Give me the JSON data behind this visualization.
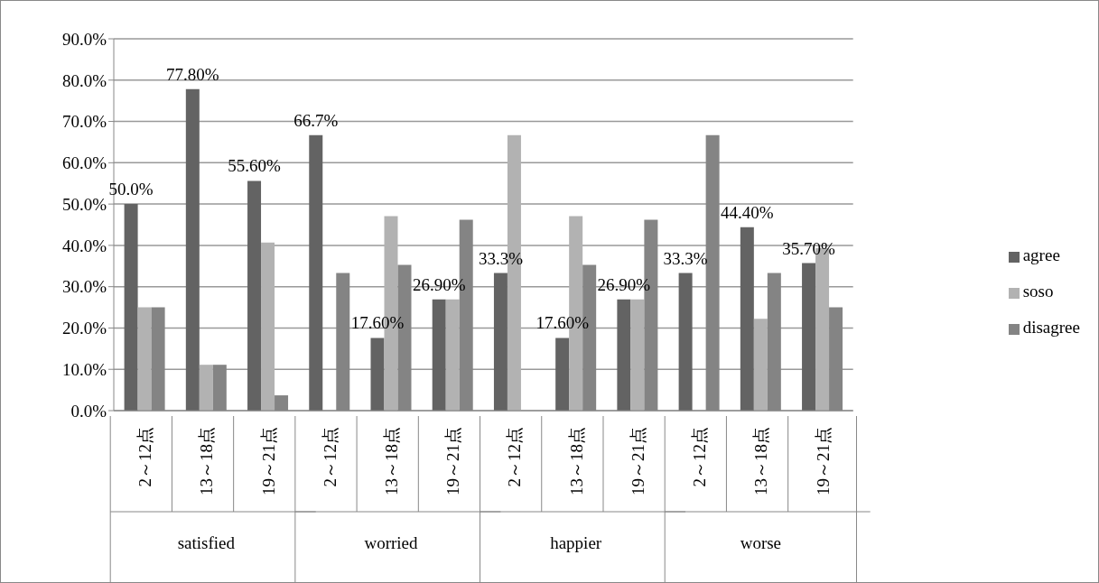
{
  "chart_data": {
    "type": "bar",
    "categories": [
      "2～12点",
      "13～18点",
      "19～21点",
      "2～12点",
      "13～18点",
      "19～21点",
      "2～12点",
      "13～18点",
      "19～21点",
      "2～12点",
      "13～18点",
      "19～21点"
    ],
    "annotations": [
      "satisfied",
      "worried",
      "happier",
      "worse"
    ],
    "series": [
      {
        "name": "agree",
        "color": "#636363",
        "values": [
          50.0,
          77.8,
          55.6,
          66.7,
          17.6,
          26.9,
          33.3,
          17.6,
          26.9,
          33.3,
          44.4,
          35.7
        ],
        "value_labels": [
          "50.0%",
          "77.80%",
          "55.60%",
          "66.7%",
          "17.60%",
          "26.90%",
          "33.3%",
          "17.60%",
          "26.90%",
          "33.3%",
          "44.40%",
          "35.70%"
        ]
      },
      {
        "name": "soso",
        "color": "#b2b2b2",
        "values": [
          25.0,
          11.1,
          40.7,
          0,
          47.1,
          26.9,
          66.7,
          47.1,
          26.9,
          0,
          22.2,
          39.3
        ]
      },
      {
        "name": "disagree",
        "color": "#848484",
        "values": [
          25.0,
          11.1,
          3.7,
          33.3,
          35.3,
          46.2,
          0,
          35.3,
          46.2,
          66.7,
          33.3,
          25.0
        ]
      }
    ],
    "ylim": [
      0,
      90
    ],
    "yticks": [
      {
        "value": 0,
        "label": "0.0%"
      },
      {
        "value": 10,
        "label": "10.0%"
      },
      {
        "value": 20,
        "label": "20.0%"
      },
      {
        "value": 30,
        "label": "30.0%"
      },
      {
        "value": 40,
        "label": "40.0%"
      },
      {
        "value": 50,
        "label": "50.0%"
      },
      {
        "value": 60,
        "label": "60.0%"
      },
      {
        "value": 70,
        "label": "70.0%"
      },
      {
        "value": 80,
        "label": "80.0%"
      },
      {
        "value": 90,
        "label": "90.0%"
      }
    ],
    "grid": "y",
    "legend": "right"
  }
}
